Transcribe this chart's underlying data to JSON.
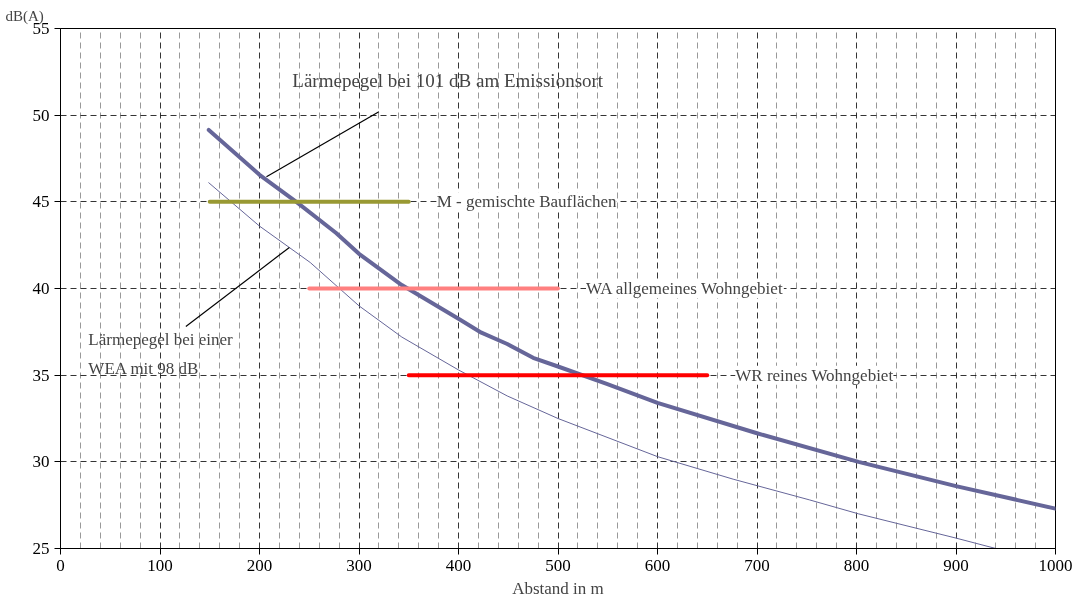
{
  "chart_data": {
    "type": "line",
    "xlabel": "Abstand in m",
    "ylabel": "dB(A)",
    "xlim": [
      0,
      1000
    ],
    "ylim": [
      25,
      55
    ],
    "xticks": [
      0,
      100,
      200,
      300,
      400,
      500,
      600,
      700,
      800,
      900,
      1000
    ],
    "yticks": [
      25,
      30,
      35,
      40,
      45,
      50,
      55
    ],
    "grid": true,
    "marker": "none",
    "line_style": "solid",
    "series": [
      {
        "color": "#666699",
        "x": [
          149,
          200,
          237,
          277,
          300,
          343,
          400,
          423,
          449,
          475,
          500,
          549,
          600,
          700,
          802,
          900,
          1000
        ],
        "values": [
          49.15,
          46.56,
          45.0,
          43.2,
          42.0,
          40.2,
          38.25,
          37.45,
          36.8,
          36.0,
          35.5,
          34.5,
          33.4,
          31.65,
          30.0,
          28.6,
          27.3
        ]
      },
      {
        "color": "#666699",
        "x": [
          149,
          200,
          251,
          300,
          343,
          400,
          449,
          500,
          600,
          676,
          753,
          802,
          900,
          940
        ],
        "values": [
          46.1,
          43.6,
          41.5,
          39.0,
          37.2,
          35.3,
          33.8,
          32.5,
          30.3,
          29.0,
          27.8,
          27.0,
          25.6,
          25.0
        ]
      },
      {
        "name": "M - gemischte Bauflächen",
        "color": "#999933",
        "x": [
          150,
          350
        ],
        "values": [
          45,
          45
        ]
      },
      {
        "name": "WA allgemeines Wohngebiet",
        "color": "#ff8080",
        "x": [
          250,
          500
        ],
        "values": [
          40,
          40
        ]
      },
      {
        "name": "WR reines Wohngebiet",
        "color": "#ff0000",
        "x": [
          350,
          650
        ],
        "values": [
          35,
          35
        ]
      }
    ],
    "annotations": [
      {
        "text": "Lärmepegel bei 101 dB am Emissionsort",
        "x": 207,
        "y": 46.45
      },
      {
        "text": "Lärmepegel bei einer\nWEA mit 98 dB",
        "x": 230,
        "y": 42.37
      }
    ]
  }
}
